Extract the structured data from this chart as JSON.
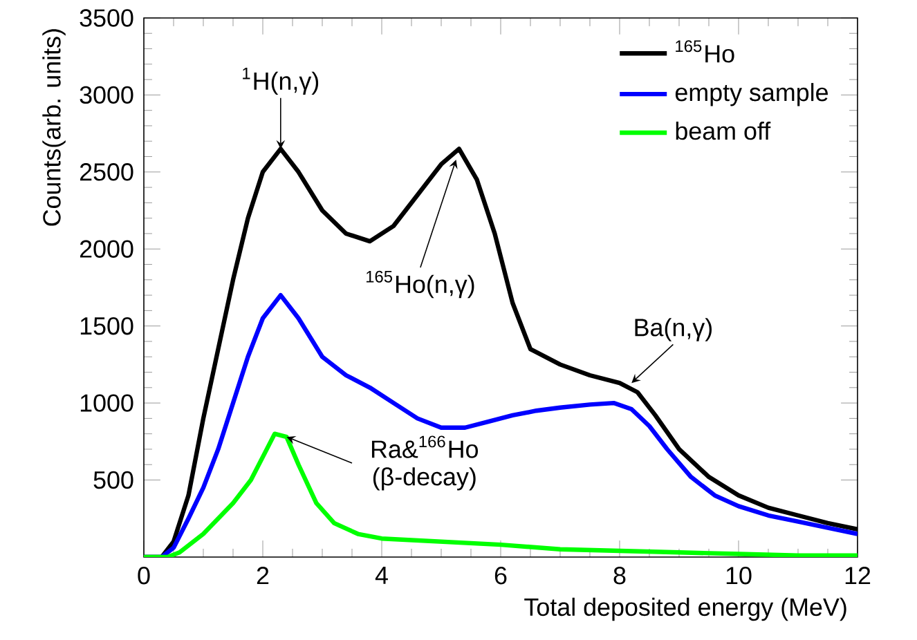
{
  "chart_data": {
    "type": "line",
    "xlabel": "Total deposited energy (MeV)",
    "ylabel": "Counts(arb. units)",
    "xlim": [
      0,
      12
    ],
    "ylim": [
      0,
      3500
    ],
    "xticks": [
      0,
      2,
      4,
      6,
      8,
      10,
      12
    ],
    "yticks": [
      500,
      1000,
      1500,
      2000,
      2500,
      3000,
      3500
    ],
    "legend": "top right",
    "grid": false,
    "marker": "none",
    "line_style": "solid",
    "series": [
      {
        "name": "$^{165}$Ho",
        "color": "#000000",
        "x": [
          0,
          0.3,
          0.5,
          0.75,
          1.0,
          1.25,
          1.5,
          1.75,
          2.0,
          2.3,
          2.6,
          3.0,
          3.4,
          3.8,
          4.2,
          4.6,
          5.0,
          5.3,
          5.6,
          5.9,
          6.2,
          6.5,
          7.0,
          7.5,
          8.0,
          8.3,
          8.6,
          9.0,
          9.5,
          10.0,
          10.5,
          11.0,
          11.5,
          12.0
        ],
        "values": [
          0,
          0,
          100,
          400,
          900,
          1350,
          1800,
          2200,
          2500,
          2650,
          2500,
          2250,
          2100,
          2050,
          2150,
          2350,
          2550,
          2650,
          2450,
          2100,
          1650,
          1350,
          1250,
          1180,
          1130,
          1070,
          920,
          700,
          520,
          400,
          320,
          270,
          220,
          180
        ]
      },
      {
        "name": "empty sample",
        "color": "#0000ff",
        "x": [
          0,
          0.3,
          0.5,
          0.75,
          1.0,
          1.25,
          1.5,
          1.75,
          2.0,
          2.3,
          2.6,
          3.0,
          3.4,
          3.8,
          4.2,
          4.6,
          5.0,
          5.4,
          5.8,
          6.2,
          6.6,
          7.0,
          7.5,
          7.9,
          8.2,
          8.5,
          8.8,
          9.2,
          9.6,
          10.0,
          10.5,
          11.0,
          11.5,
          12.0
        ],
        "values": [
          0,
          0,
          60,
          250,
          450,
          700,
          1000,
          1300,
          1550,
          1700,
          1550,
          1300,
          1180,
          1100,
          1000,
          900,
          840,
          840,
          880,
          920,
          950,
          970,
          990,
          1000,
          960,
          850,
          700,
          520,
          400,
          330,
          270,
          230,
          190,
          150
        ]
      },
      {
        "name": "beam off",
        "color": "#00ff00",
        "x": [
          0,
          0.4,
          0.6,
          1.0,
          1.5,
          1.8,
          2.0,
          2.2,
          2.4,
          2.6,
          2.9,
          3.2,
          3.6,
          4.0,
          5.0,
          6.0,
          7.0,
          8.0,
          9.0,
          10.0,
          11.0,
          12.0
        ],
        "values": [
          0,
          0,
          30,
          150,
          350,
          500,
          650,
          800,
          780,
          600,
          350,
          220,
          150,
          120,
          100,
          80,
          50,
          40,
          30,
          20,
          10,
          10
        ]
      }
    ],
    "annotations": [
      {
        "text": "$^{1}$H(n,γ)",
        "x": 2.3,
        "y": 2650
      },
      {
        "text": "$^{165}$Ho(n,γ)",
        "x": 5.25,
        "y": 2580
      },
      {
        "text": "Ba(n,γ)",
        "x": 8.2,
        "y": 1130
      },
      {
        "text": "Ra&$^{166}$Ho (β-decay)",
        "x": 2.4,
        "y": 780
      }
    ]
  }
}
